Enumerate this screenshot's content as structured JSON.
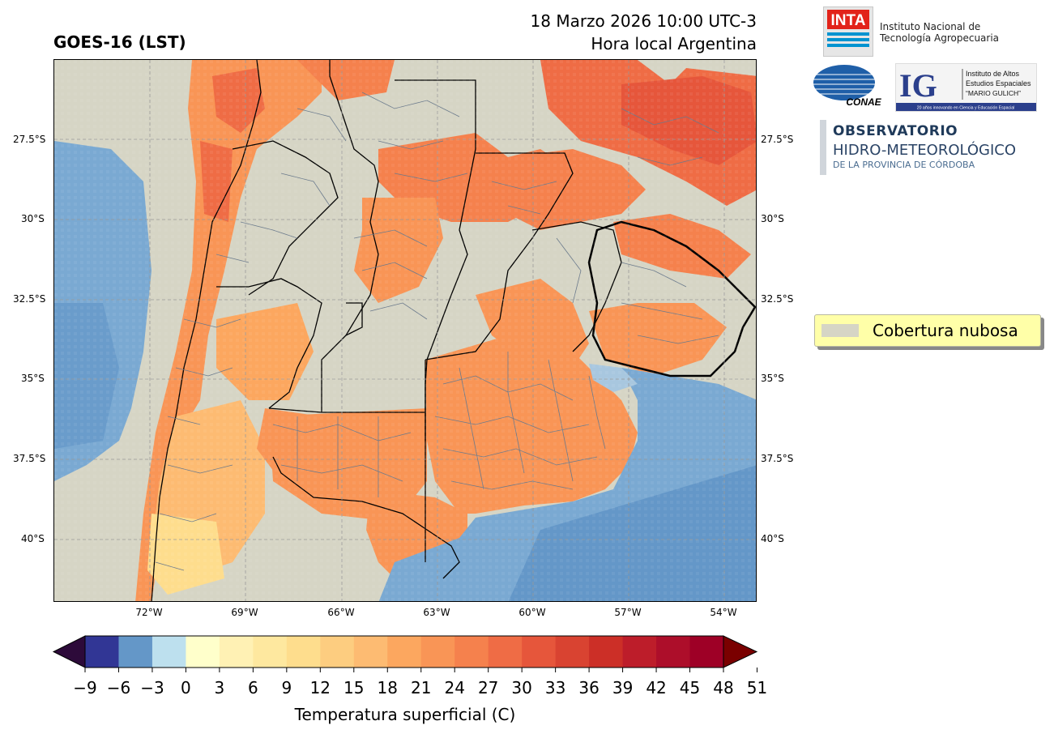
{
  "header": {
    "title_left": "GOES-16 (LST)",
    "title_right_line1": "18 Marzo 2026 10:00 UTC-3",
    "title_right_line2": "Hora local Argentina"
  },
  "map": {
    "background_color": "#d6d5c5",
    "lat_ticks": [
      "27.5°S",
      "30°S",
      "32.5°S",
      "35°S",
      "37.5°S",
      "40°S"
    ],
    "lon_ticks": [
      "72°W",
      "69°W",
      "66°W",
      "63°W",
      "60°W",
      "57°W",
      "54°W"
    ],
    "layers": [
      "lst-field",
      "cloud-cover",
      "ocean-water",
      "province-boundaries",
      "department-boundaries"
    ]
  },
  "legend": {
    "label": "Cobertura nubosa",
    "swatch_color": "#d6d5c5",
    "box_color": "#ffffa8"
  },
  "colorbar": {
    "label": "Temperatura superficial (C)",
    "ticks": [
      "−9",
      "−6",
      "−3",
      "0",
      "3",
      "6",
      "9",
      "12",
      "15",
      "18",
      "21",
      "24",
      "27",
      "30",
      "33",
      "36",
      "39",
      "42",
      "45",
      "48",
      "51"
    ],
    "under_color": "#2d0a3a",
    "over_color": "#7a0000",
    "colors": [
      "#313695",
      "#6497c8",
      "#bde0ee",
      "#ffffcb",
      "#fff1b4",
      "#fee89f",
      "#fedd8d",
      "#fdcd80",
      "#fdbb72",
      "#fca75f",
      "#f99556",
      "#f5814d",
      "#ef6c45",
      "#e6563b",
      "#d94331",
      "#cc2f27",
      "#bd1d2a",
      "#ad0e2a",
      "#9e0026"
    ]
  },
  "logos": {
    "inta": {
      "mark": "INTA",
      "line1": "Instituto Nacional de",
      "line2": "Tecnología Agropecuaria"
    },
    "conae": {
      "mark": "CONAE"
    },
    "ig": {
      "mark": "IG",
      "line1": "Instituto de Altos",
      "line2": "Estudios Espaciales",
      "line3": "“MARIO GULICH”",
      "tagline": "20 años innovando en Ciencia y Educación Espacial"
    },
    "observatorio": {
      "line1": "OBSERVATORIO",
      "line2": "HIDRO-METEOROLÓGICO",
      "line3": "DE LA PROVINCIA DE CÓRDOBA"
    }
  }
}
